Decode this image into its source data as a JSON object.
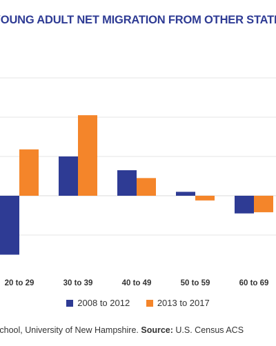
{
  "chart_data": {
    "type": "bar",
    "title": "YOUNG ADULT NET MIGRATION FROM OTHER STATES",
    "xlabel": "",
    "ylabel": "",
    "categories": [
      "20 to 29",
      "30 to 39",
      "40 to 49",
      "50 to 59",
      "60 to 69"
    ],
    "series": [
      {
        "name": "2008 to 2012",
        "color": "#2e3b94",
        "values": [
          -1.5,
          1.0,
          0.65,
          0.1,
          -0.45
        ]
      },
      {
        "name": "2013 to 2017",
        "color": "#f4852a",
        "values": [
          1.18,
          2.05,
          0.45,
          -0.12,
          -0.42
        ]
      }
    ],
    "ylim": [
      -1.5,
      3.5
    ],
    "yticks": [
      -1,
      0,
      1,
      2,
      3,
      4
    ],
    "grid": true,
    "legend": "bottom-center"
  },
  "footer": {
    "credit": "Carsey School, University of New Hampshire.",
    "source_label": "Source:",
    "source_text": "U.S. Census ACS"
  }
}
